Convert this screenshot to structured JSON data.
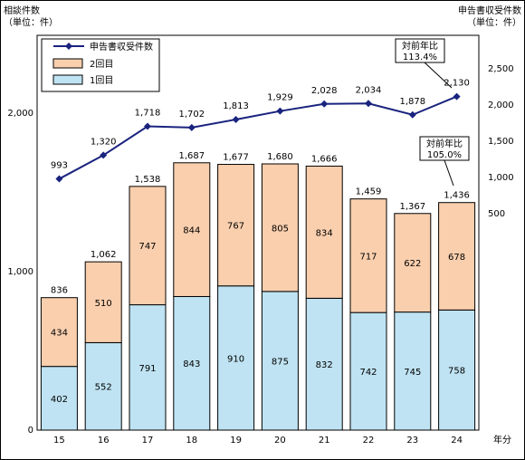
{
  "chart_data": {
    "type": "bar",
    "stacked": true,
    "categories": [
      "15",
      "16",
      "17",
      "18",
      "19",
      "20",
      "21",
      "22",
      "23",
      "24"
    ],
    "xlabel_unit": "年分",
    "left_axis": {
      "title": "相談件数",
      "unit": "（単位：件）",
      "ticks": [
        "0",
        "1,000",
        "2,000"
      ],
      "range": [
        0,
        2400
      ]
    },
    "right_axis": {
      "title": "申告書収受件数",
      "unit": "（単位：件）",
      "ticks": [
        "500",
        "1,000",
        "1,500",
        "2,000",
        "2,500"
      ],
      "range": [
        -500,
        2900
      ]
    },
    "series": [
      {
        "name": "1回目",
        "values": [
          402,
          552,
          791,
          843,
          910,
          875,
          832,
          742,
          745,
          758
        ],
        "color": "#bfe3f2"
      },
      {
        "name": "2回目",
        "values": [
          434,
          510,
          747,
          844,
          767,
          805,
          834,
          717,
          622,
          678
        ],
        "color": "#f9cfae"
      }
    ],
    "totals": [
      "836",
      "1,062",
      "1,538",
      "1,687",
      "1,677",
      "1,680",
      "1,666",
      "1,459",
      "1,367",
      "1,436"
    ],
    "line": {
      "name": "申告書収受件数",
      "values": [
        993,
        1320,
        1718,
        1702,
        1813,
        1929,
        2028,
        2034,
        1878,
        2130
      ],
      "labels": [
        "993",
        "1,320",
        "1,718",
        "1,702",
        "1,813",
        "1,929",
        "2,028",
        "2,034",
        "1,878",
        "2,130"
      ],
      "color": "#1a237e"
    },
    "callouts": [
      {
        "label": "対前年比",
        "value": "113.4%"
      },
      {
        "label": "対前年比",
        "value": "105.0%"
      }
    ],
    "legend_order": [
      "申告書収受件数",
      "2回目",
      "1回目"
    ]
  }
}
